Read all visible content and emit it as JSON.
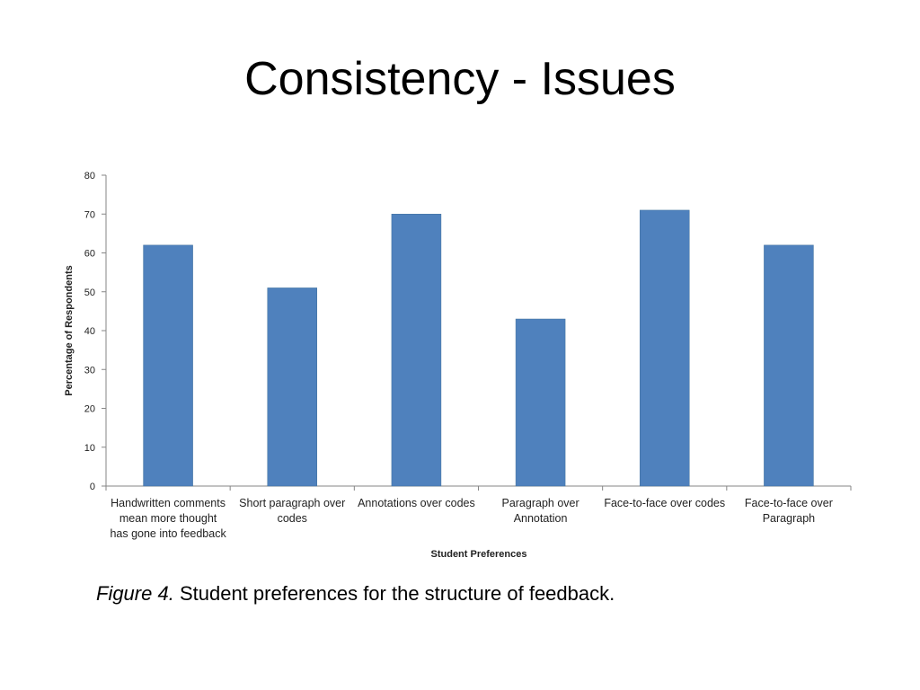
{
  "slide": {
    "title": "Consistency - Issues"
  },
  "caption": {
    "figure_label": "Figure 4.",
    "text": "Student preferences for the structure of feedback."
  },
  "chart_data": {
    "type": "bar",
    "categories": [
      [
        "Handwritten comments",
        "mean more thought",
        "has gone into feedback"
      ],
      [
        "Short paragraph over",
        "codes"
      ],
      [
        "Annotations over codes"
      ],
      [
        "Paragraph over",
        "Annotation"
      ],
      [
        "Face-to-face over codes"
      ],
      [
        "Face-to-face over",
        "Paragraph"
      ]
    ],
    "values": [
      62,
      51,
      70,
      43,
      71,
      62
    ],
    "xlabel": "Student Preferences",
    "ylabel": "Percentage of Respondents",
    "ylim": [
      0,
      80
    ],
    "yticks": [
      0,
      10,
      20,
      30,
      40,
      50,
      60,
      70,
      80
    ],
    "bar_color": "#4f81bd",
    "grid": false,
    "legend": "none"
  }
}
